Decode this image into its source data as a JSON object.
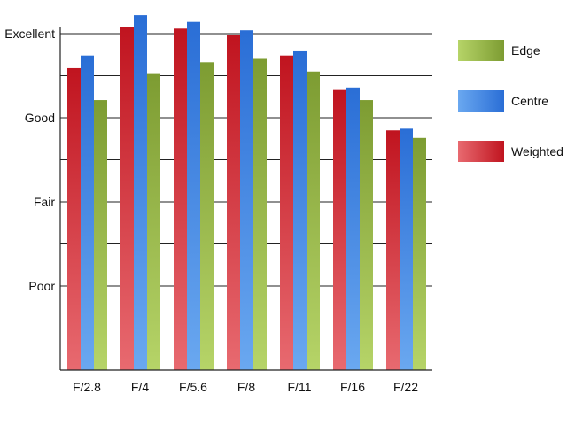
{
  "chart_data": {
    "type": "bar",
    "title": "",
    "xlabel": "",
    "ylabel": "",
    "categories": [
      "F/2.8",
      "F/4",
      "F/5.6",
      "F/8",
      "F/11",
      "F/16",
      "F/22"
    ],
    "series": [
      {
        "name": "Weighted",
        "values": [
          3.59,
          4.08,
          4.06,
          3.98,
          3.74,
          3.33,
          2.85
        ],
        "color": "#c0141f",
        "color_light": "#e86a70"
      },
      {
        "name": "Centre",
        "values": [
          3.74,
          4.22,
          4.14,
          4.04,
          3.79,
          3.36,
          2.87
        ],
        "color": "#2a6ed6",
        "color_light": "#6aa8f0"
      },
      {
        "name": "Edge",
        "values": [
          3.21,
          3.52,
          3.66,
          3.7,
          3.55,
          3.21,
          2.76
        ],
        "color": "#7d9c32",
        "color_light": "#b6d468"
      }
    ],
    "y_tick_labels": [
      {
        "value": 1,
        "label": "Poor"
      },
      {
        "value": 2,
        "label": "Fair"
      },
      {
        "value": 3,
        "label": "Good"
      },
      {
        "value": 4,
        "label": "Excellent"
      }
    ],
    "ylim": [
      0,
      4
    ],
    "grid": true,
    "legend_position": "right",
    "legend_order": [
      "Edge",
      "Centre",
      "Weighted"
    ]
  }
}
